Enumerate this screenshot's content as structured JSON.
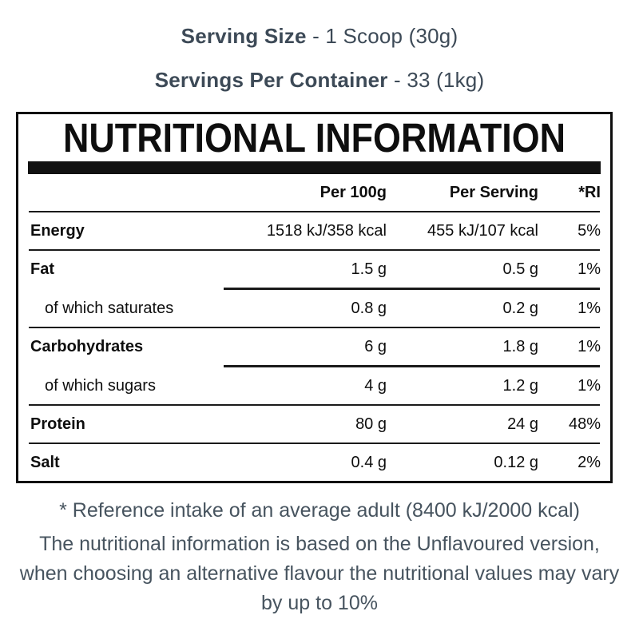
{
  "top": {
    "serving_size_label": "Serving Size",
    "serving_size_value": " - 1 Scoop (30g)",
    "servings_label": "Servings Per Container",
    "servings_value": " - 33 (1kg)"
  },
  "table": {
    "title": "NUTRITIONAL INFORMATION",
    "columns": {
      "per100g": "Per 100g",
      "per_serving": "Per Serving",
      "ri": "*RI"
    },
    "rows": [
      {
        "label": "Energy",
        "per100g": "1518 kJ/358 kcal",
        "per_serving": "455 kJ/107 kcal",
        "ri": "5%"
      },
      {
        "label": "Fat",
        "per100g": "1.5 g",
        "per_serving": "0.5 g",
        "ri": "1%"
      },
      {
        "label": "of which saturates",
        "per100g": "0.8 g",
        "per_serving": "0.2 g",
        "ri": "1%"
      },
      {
        "label": "Carbohydrates",
        "per100g": "6 g",
        "per_serving": "1.8 g",
        "ri": "1%"
      },
      {
        "label": "of which sugars",
        "per100g": "4 g",
        "per_serving": "1.2 g",
        "ri": "1%"
      },
      {
        "label": "Protein",
        "per100g": "80 g",
        "per_serving": "24 g",
        "ri": "48%"
      },
      {
        "label": "Salt",
        "per100g": "0.4 g",
        "per_serving": "0.12 g",
        "ri": "2%"
      }
    ]
  },
  "footnotes": {
    "reference": "* Reference intake of an average adult (8400 kJ/2000 kcal)",
    "flavour_line1": "The nutritional information is based on the Unflavoured version,",
    "flavour_line2": "when choosing an alternative flavour the nutritional values may vary",
    "flavour_line3": "by up to 10%"
  },
  "colors": {
    "heading_text": "#3d4a57",
    "footnote_text": "#47545f",
    "table_text": "#0e0e0e",
    "rule_color": "#1a1a1a"
  }
}
